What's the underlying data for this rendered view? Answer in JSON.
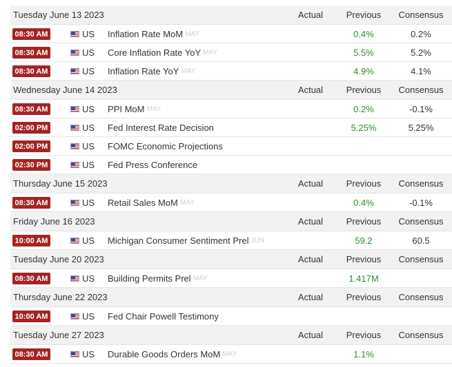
{
  "columns": {
    "actual": "Actual",
    "previous": "Previous",
    "consensus": "Consensus"
  },
  "days": [
    {
      "date": "Tuesday June 13 2023",
      "events": [
        {
          "time": "08:30 AM",
          "country": "US",
          "name": "Inflation Rate MoM",
          "period": "MAY",
          "actual": "",
          "previous": "0.4%",
          "consensus": "0.2%"
        },
        {
          "time": "08:30 AM",
          "country": "US",
          "name": "Core Inflation Rate YoY",
          "period": "MAY",
          "actual": "",
          "previous": "5.5%",
          "consensus": "5.2%"
        },
        {
          "time": "08:30 AM",
          "country": "US",
          "name": "Inflation Rate YoY",
          "period": "MAY",
          "actual": "",
          "previous": "4.9%",
          "consensus": "4.1%"
        }
      ]
    },
    {
      "date": "Wednesday June 14 2023",
      "events": [
        {
          "time": "08:30 AM",
          "country": "US",
          "name": "PPI MoM",
          "period": "MAY",
          "actual": "",
          "previous": "0.2%",
          "consensus": "-0.1%"
        },
        {
          "time": "02:00 PM",
          "country": "US",
          "name": "Fed Interest Rate Decision",
          "period": "",
          "actual": "",
          "previous": "5.25%",
          "consensus": "5.25%"
        },
        {
          "time": "02:00 PM",
          "country": "US",
          "name": "FOMC Economic Projections",
          "period": "",
          "actual": "",
          "previous": "",
          "consensus": ""
        },
        {
          "time": "02:30 PM",
          "country": "US",
          "name": "Fed Press Conference",
          "period": "",
          "actual": "",
          "previous": "",
          "consensus": ""
        }
      ]
    },
    {
      "date": "Thursday June 15 2023",
      "events": [
        {
          "time": "08:30 AM",
          "country": "US",
          "name": "Retail Sales MoM",
          "period": "MAY",
          "actual": "",
          "previous": "0.4%",
          "consensus": "-0.1%"
        }
      ]
    },
    {
      "date": "Friday June 16 2023",
      "events": [
        {
          "time": "10:00 AM",
          "country": "US",
          "name": "Michigan Consumer Sentiment Prel",
          "period": "JUN",
          "actual": "",
          "previous": "59.2",
          "consensus": "60.5"
        }
      ]
    },
    {
      "date": "Tuesday June 20 2023",
      "events": [
        {
          "time": "08:30 AM",
          "country": "US",
          "name": "Building Permits Prel",
          "period": "MAY",
          "actual": "",
          "previous": "1.417M",
          "consensus": ""
        }
      ]
    },
    {
      "date": "Thursday June 22 2023",
      "events": [
        {
          "time": "10:00 AM",
          "country": "US",
          "name": "Fed Chair Powell Testimony",
          "period": "",
          "actual": "",
          "previous": "",
          "consensus": ""
        }
      ]
    },
    {
      "date": "Tuesday June 27 2023",
      "events": [
        {
          "time": "08:30 AM",
          "country": "US",
          "name": "Durable Goods Orders MoM",
          "period": "MAY",
          "actual": "",
          "previous": "1.1%",
          "consensus": ""
        }
      ]
    }
  ],
  "colors": {
    "time_badge": "#a42424",
    "previous_value": "#2e8b2e",
    "header_bg": "#f2f2f2"
  },
  "icons": {
    "country_flag": "us-flag-icon"
  }
}
